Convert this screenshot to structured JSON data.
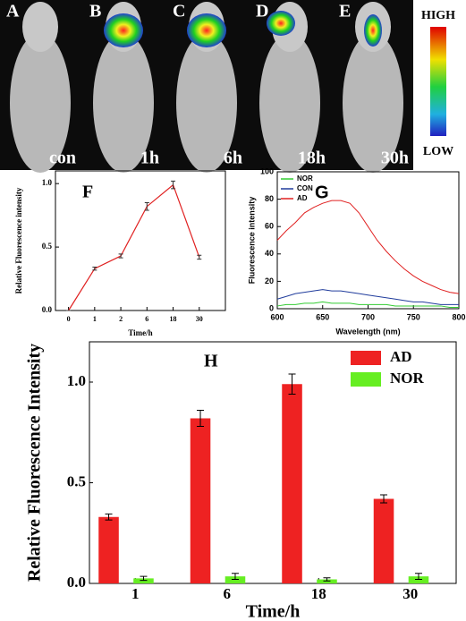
{
  "image_panel": {
    "panels": [
      {
        "letter": "A",
        "time": "con"
      },
      {
        "letter": "B",
        "time": "1h"
      },
      {
        "letter": "C",
        "time": "6h"
      },
      {
        "letter": "D",
        "time": "18h"
      },
      {
        "letter": "E",
        "time": "30h"
      }
    ],
    "scale": {
      "high": "HIGH",
      "low": "LOW"
    }
  },
  "chart_data": [
    {
      "type": "line",
      "label": "F",
      "x_label": "Time/h",
      "y_label": "Relative Fluorescence intensity",
      "categories": [
        "0",
        "1",
        "2",
        "6",
        "18",
        "30"
      ],
      "values": [
        0,
        0.33,
        0.43,
        0.82,
        0.99,
        0.42
      ],
      "errors": [
        0,
        0.012,
        0.015,
        0.03,
        0.03,
        0.015
      ],
      "color": "#e02020",
      "ylim": [
        0,
        1.1
      ],
      "yticks": [
        {
          "value": 0,
          "label": "0.0"
        },
        {
          "value": 0.5,
          "label": "0.5"
        },
        {
          "value": 1,
          "label": "1.0"
        }
      ]
    },
    {
      "type": "line",
      "label": "G",
      "x_label": "Wavelength (nm)",
      "y_label": "Fluorescence intensity",
      "legend": "top-left",
      "x": [
        600,
        610,
        620,
        630,
        640,
        650,
        660,
        670,
        680,
        690,
        700,
        710,
        720,
        730,
        740,
        750,
        760,
        770,
        780,
        790,
        800
      ],
      "series": [
        {
          "name": "NOR",
          "color": "#33cc33",
          "values": [
            2,
            3,
            3,
            4,
            4,
            5,
            4,
            4,
            4,
            3,
            3,
            3,
            3,
            2,
            2,
            2,
            2,
            2,
            2,
            1,
            1
          ]
        },
        {
          "name": "CON",
          "color": "#203c9c",
          "values": [
            7,
            9,
            11,
            12,
            13,
            14,
            13,
            13,
            12,
            11,
            10,
            9,
            8,
            7,
            6,
            5,
            5,
            4,
            3,
            3,
            3
          ]
        },
        {
          "name": "AD",
          "color": "#e02020",
          "values": [
            50,
            57,
            63,
            70,
            74,
            77,
            79,
            79,
            77,
            70,
            60,
            50,
            42,
            35,
            29,
            24,
            20,
            17,
            14,
            12,
            11
          ]
        }
      ],
      "xlim": [
        600,
        800
      ],
      "xticks": [
        600,
        650,
        700,
        750,
        800
      ],
      "ylim": [
        0,
        100
      ],
      "yticks": [
        0,
        20,
        40,
        60,
        80,
        100
      ]
    },
    {
      "type": "bar",
      "label": "H",
      "x_label": "Time/h",
      "y_label": "Relative Fluorescence Intensity",
      "legend": "top-right",
      "categories": [
        "1",
        "6",
        "18",
        "30"
      ],
      "series": [
        {
          "name": "AD",
          "color": "#ee2222",
          "values": [
            0.33,
            0.82,
            0.99,
            0.42
          ],
          "errors": [
            0.015,
            0.04,
            0.05,
            0.02
          ]
        },
        {
          "name": "NOR",
          "color": "#66ee22",
          "values": [
            0.025,
            0.035,
            0.02,
            0.035
          ],
          "errors": [
            0.01,
            0.015,
            0.008,
            0.015
          ]
        }
      ],
      "ylim": [
        0,
        1.2
      ],
      "yticks": [
        {
          "value": 0,
          "label": "0.0"
        },
        {
          "value": 0.5,
          "label": "0.5"
        },
        {
          "value": 1,
          "label": "1.0"
        }
      ]
    }
  ]
}
